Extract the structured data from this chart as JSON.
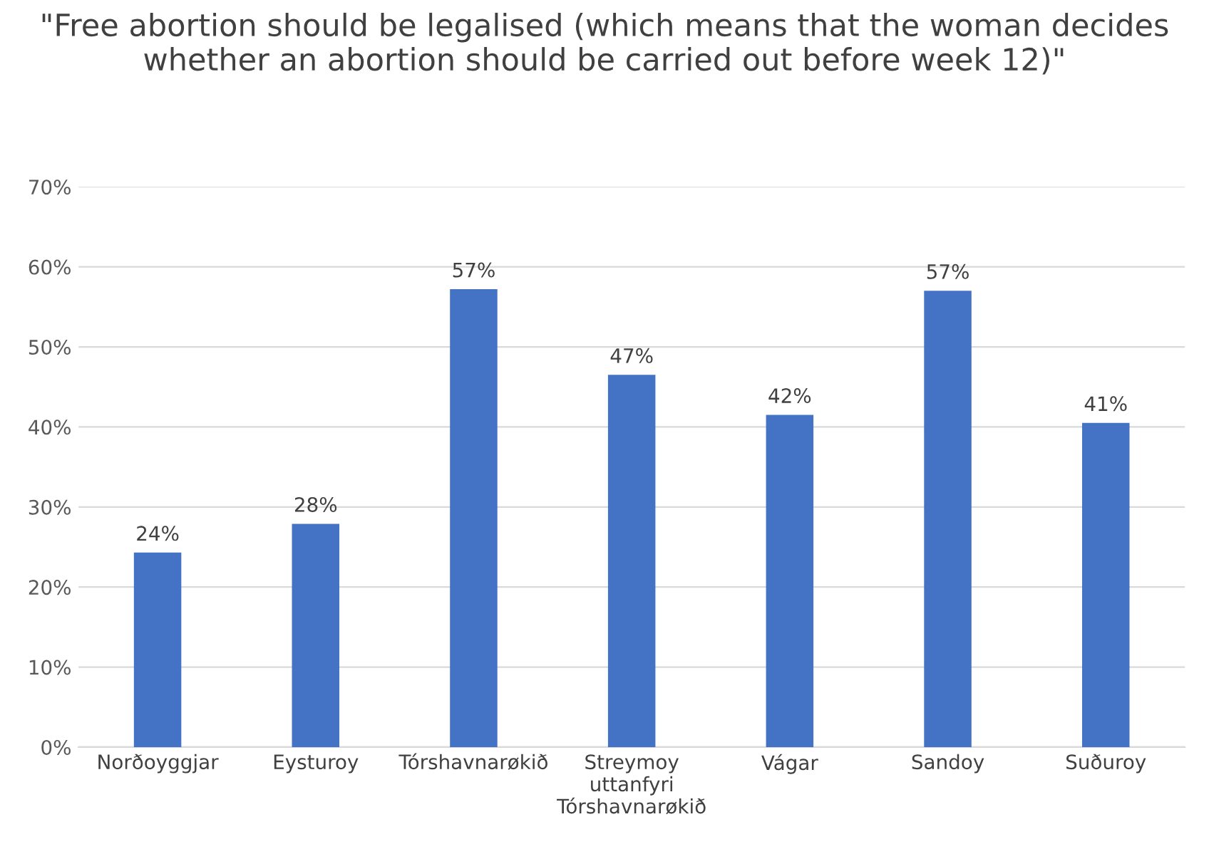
{
  "chart_data": {
    "type": "bar",
    "title": "\"Free abortion should be legalised (which means that the woman decides whether an abortion should be carried out before week 12)\"",
    "categories": [
      "Norðoyggjar",
      "Eysturoy",
      "Tórshavnarøkið",
      "Streymoy\nuttanfyri\nTórshavnarøkið",
      "Vágar",
      "Sandoy",
      "Suðuroy"
    ],
    "values": [
      24.3,
      27.9,
      57.2,
      46.5,
      41.5,
      57.0,
      40.5
    ],
    "value_labels": [
      "24%",
      "28%",
      "57%",
      "47%",
      "42%",
      "57%",
      "41%"
    ],
    "color": "#4472c4",
    "ylim": [
      0,
      70
    ],
    "yticks": [
      {
        "value": 0,
        "label": "0%"
      },
      {
        "value": 10,
        "label": "10%"
      },
      {
        "value": 20,
        "label": "20%"
      },
      {
        "value": 30,
        "label": "30%"
      },
      {
        "value": 40,
        "label": "40%"
      },
      {
        "value": 50,
        "label": "50%"
      },
      {
        "value": 60,
        "label": "60%"
      },
      {
        "value": 70,
        "label": "70%"
      }
    ],
    "grid": "y"
  }
}
